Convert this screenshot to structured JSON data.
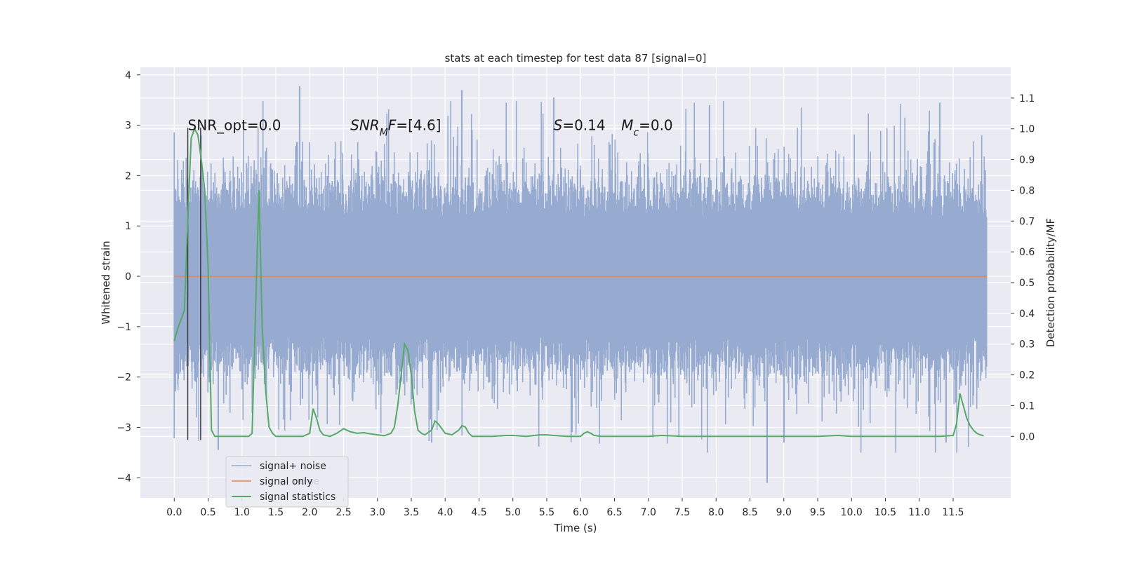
{
  "chart_data": {
    "type": "line",
    "title": "stats at each timestep for test data 87 [signal=0]",
    "xlabel": "Time (s)",
    "ylabel": "Whitened strain",
    "y2label": "Detection probability/MF",
    "xlim": [
      -0.5,
      12.35
    ],
    "ylim": [
      -4.4,
      4.15
    ],
    "y2lim": [
      -0.2,
      1.2
    ],
    "xticks": [
      0.0,
      0.5,
      1.0,
      1.5,
      2.0,
      2.5,
      3.0,
      3.5,
      4.0,
      4.5,
      5.0,
      5.5,
      6.0,
      6.5,
      7.0,
      7.5,
      8.0,
      8.5,
      9.0,
      9.5,
      10.0,
      10.5,
      11.0,
      11.5
    ],
    "xtick_labels": [
      "0.0",
      "0.5",
      "1.0",
      "1.5",
      "2.0",
      "2.5",
      "3.0",
      "3.5",
      "4.0",
      "4.5",
      "5.0",
      "5.5",
      "6.0",
      "6.5",
      "7.0",
      "7.5",
      "8.0",
      "8.5",
      "9.0",
      "9.5",
      "10.0",
      "10.5",
      "11.0",
      "11.5"
    ],
    "yticks": [
      -4,
      -3,
      -2,
      -1,
      0,
      1,
      2,
      3,
      4
    ],
    "ytick_labels": [
      "−4",
      "−3",
      "−2",
      "−1",
      "0",
      "1",
      "2",
      "3",
      "4"
    ],
    "y2ticks": [
      0.0,
      0.1,
      0.2,
      0.3,
      0.4,
      0.5,
      0.6,
      0.7,
      0.8,
      0.9,
      1.0,
      1.1
    ],
    "y2tick_labels": [
      "0.0",
      "0.1",
      "0.2",
      "0.3",
      "0.4",
      "0.5",
      "0.6",
      "0.7",
      "0.8",
      "0.9",
      "1.0",
      "1.1"
    ],
    "grid": true,
    "legend": {
      "position": "lower-left",
      "entries": [
        "signal+ noise",
        "signal only",
        "signal statistics"
      ],
      "ghost_text": "noise"
    },
    "colors": {
      "signal_noise": "#97abd0",
      "signal_only": "#dd8452",
      "signal_statistics": "#55a868",
      "vlines": "#333333",
      "background": "#eaeaf2"
    },
    "annotations": [
      {
        "text": "SNR_opt=0.0",
        "x": 0.2,
        "y": 3.0
      },
      {
        "text": "SNRMF=[4.6]",
        "x": 2.6,
        "y": 3.0
      },
      {
        "text": "S=0.14",
        "x": 5.6,
        "y": 3.0
      },
      {
        "text": "Mc=0.0",
        "x": 6.6,
        "y": 3.0
      }
    ],
    "noise": {
      "x_range": [
        0.0,
        12.0
      ],
      "typical_amplitude": 1.2,
      "spike_extent": [
        -4.1,
        3.78
      ],
      "notable_spikes": [
        {
          "x": 1.85,
          "y": 3.78
        },
        {
          "x": 4.25,
          "y": 3.7
        },
        {
          "x": 5.6,
          "y": 3.55
        },
        {
          "x": 7.9,
          "y": 3.4
        },
        {
          "x": 11.3,
          "y": 3.45
        },
        {
          "x": 8.75,
          "y": -4.1
        },
        {
          "x": 0.65,
          "y": -3.45
        },
        {
          "x": 3.8,
          "y": -3.3
        },
        {
          "x": 9.0,
          "y": -3.3
        },
        {
          "x": 11.4,
          "y": -3.3
        }
      ]
    },
    "series": [
      {
        "name": "signal only",
        "x": [
          0.0,
          12.0
        ],
        "y": [
          0.0,
          0.0
        ]
      },
      {
        "name": "signal statistics",
        "axis": "right",
        "x": [
          0.0,
          0.05,
          0.1,
          0.15,
          0.2,
          0.25,
          0.3,
          0.35,
          0.4,
          0.45,
          0.5,
          0.55,
          0.6,
          0.7,
          0.8,
          0.9,
          1.0,
          1.1,
          1.15,
          1.2,
          1.25,
          1.3,
          1.35,
          1.4,
          1.45,
          1.5,
          1.6,
          1.7,
          1.8,
          1.9,
          2.0,
          2.05,
          2.1,
          2.15,
          2.2,
          2.3,
          2.4,
          2.5,
          2.6,
          2.7,
          2.8,
          2.9,
          3.0,
          3.1,
          3.2,
          3.25,
          3.3,
          3.35,
          3.4,
          3.45,
          3.5,
          3.55,
          3.6,
          3.65,
          3.7,
          3.8,
          3.85,
          3.9,
          4.0,
          4.1,
          4.2,
          4.25,
          4.3,
          4.35,
          4.4,
          4.5,
          4.7,
          4.9,
          5.0,
          5.2,
          5.4,
          5.5,
          5.6,
          5.8,
          6.0,
          6.05,
          6.1,
          6.15,
          6.2,
          6.3,
          6.5,
          7.0,
          7.2,
          7.5,
          8.0,
          8.5,
          9.0,
          9.5,
          9.8,
          10.0,
          10.5,
          11.0,
          11.3,
          11.5,
          11.55,
          11.6,
          11.65,
          11.7,
          11.75,
          11.8,
          11.85,
          11.9,
          11.95
        ],
        "y": [
          0.31,
          0.35,
          0.38,
          0.41,
          0.7,
          0.97,
          1.0,
          0.98,
          0.9,
          0.8,
          0.55,
          0.02,
          0.0,
          0.0,
          0.0,
          0.0,
          0.0,
          0.0,
          0.01,
          0.4,
          0.8,
          0.35,
          0.15,
          0.03,
          0.01,
          0.0,
          0.0,
          0.0,
          0.0,
          0.0,
          0.01,
          0.09,
          0.06,
          0.02,
          0.005,
          0.0,
          0.01,
          0.025,
          0.015,
          0.01,
          0.012,
          0.008,
          0.005,
          0.002,
          0.01,
          0.03,
          0.1,
          0.2,
          0.3,
          0.28,
          0.2,
          0.08,
          0.02,
          0.01,
          0.005,
          0.02,
          0.05,
          0.04,
          0.01,
          0.005,
          0.02,
          0.035,
          0.03,
          0.01,
          0.0,
          0.0,
          0.0,
          0.003,
          0.003,
          0.0,
          0.005,
          0.005,
          0.003,
          0.0,
          0.0,
          0.01,
          0.015,
          0.01,
          0.003,
          0.0,
          0.0,
          0.0,
          0.003,
          0.0,
          0.0,
          0.0,
          0.0,
          0.0,
          0.003,
          0.0,
          0.0,
          0.0,
          0.0,
          0.003,
          0.04,
          0.14,
          0.1,
          0.06,
          0.035,
          0.02,
          0.01,
          0.005,
          0.002
        ]
      }
    ],
    "vertical_lines": [
      {
        "x": 0.2,
        "y": [
          -3.25,
          2.95
        ]
      },
      {
        "x": 0.39,
        "y": [
          -3.25,
          2.95
        ]
      }
    ]
  }
}
